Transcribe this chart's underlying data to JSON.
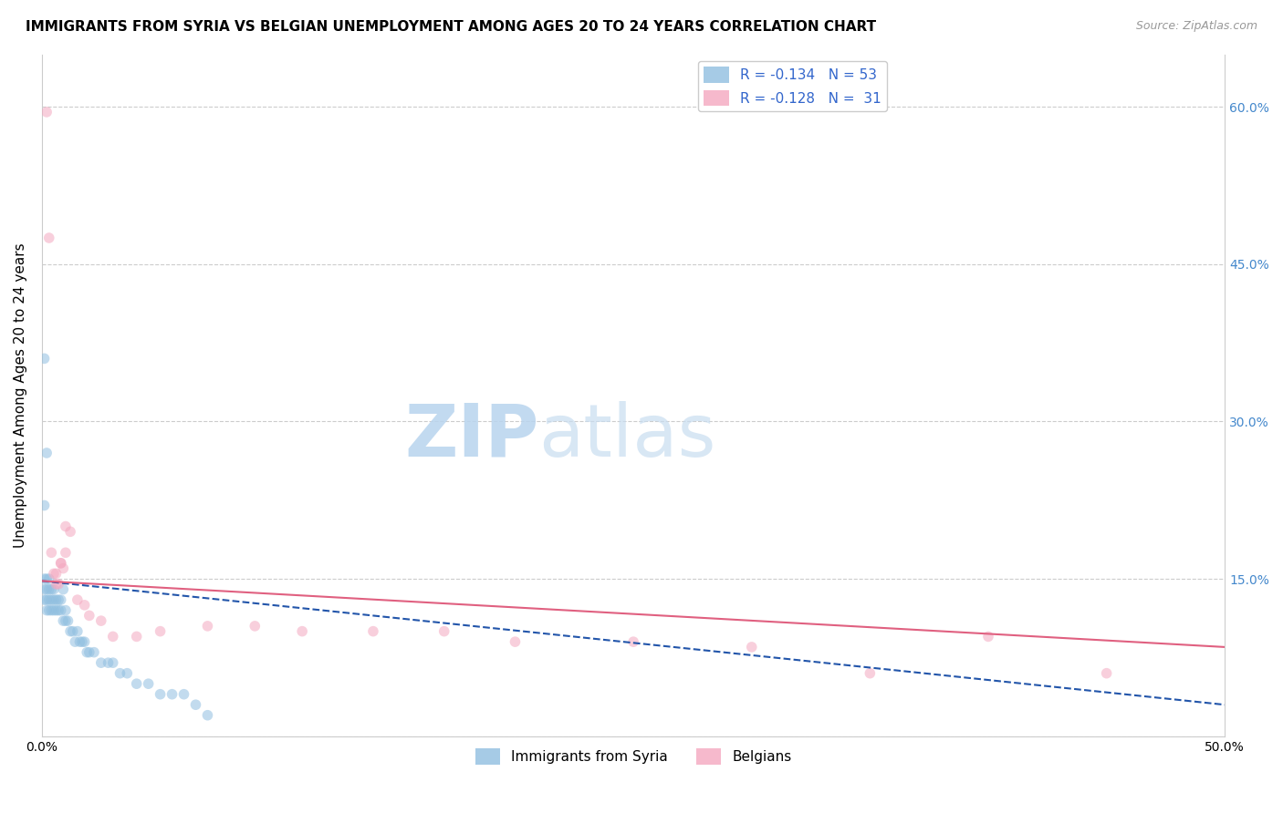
{
  "title": "IMMIGRANTS FROM SYRIA VS BELGIAN UNEMPLOYMENT AMONG AGES 20 TO 24 YEARS CORRELATION CHART",
  "source": "Source: ZipAtlas.com",
  "ylabel": "Unemployment Among Ages 20 to 24 years",
  "x_min": 0.0,
  "x_max": 0.5,
  "y_min": 0.0,
  "y_max": 0.65,
  "x_ticks": [
    0.0,
    0.1,
    0.2,
    0.3,
    0.4,
    0.5
  ],
  "x_tick_labels": [
    "0.0%",
    "",
    "",
    "",
    "",
    "50.0%"
  ],
  "y_ticks": [
    0.0,
    0.15,
    0.3,
    0.45,
    0.6
  ],
  "right_y_tick_labels": [
    "",
    "15.0%",
    "30.0%",
    "45.0%",
    "60.0%"
  ],
  "blue_color": "#90bfe0",
  "pink_color": "#f4a8c0",
  "blue_line_color": "#2255aa",
  "pink_line_color": "#e06080",
  "grid_color": "#cccccc",
  "bg_color": "#ffffff",
  "title_fontsize": 11,
  "axis_label_fontsize": 11,
  "tick_fontsize": 10,
  "right_tick_color": "#4488cc",
  "scatter_size": 70,
  "scatter_alpha": 0.55,
  "blue_scatter_x": [
    0.001,
    0.001,
    0.001,
    0.001,
    0.002,
    0.002,
    0.002,
    0.002,
    0.002,
    0.003,
    0.003,
    0.003,
    0.003,
    0.004,
    0.004,
    0.004,
    0.005,
    0.005,
    0.005,
    0.006,
    0.006,
    0.007,
    0.007,
    0.008,
    0.008,
    0.009,
    0.009,
    0.01,
    0.01,
    0.011,
    0.012,
    0.013,
    0.014,
    0.015,
    0.016,
    0.017,
    0.018,
    0.019,
    0.02,
    0.022,
    0.025,
    0.028,
    0.03,
    0.033,
    0.036,
    0.04,
    0.045,
    0.05,
    0.055,
    0.06,
    0.065,
    0.07,
    0.001
  ],
  "blue_scatter_y": [
    0.36,
    0.15,
    0.14,
    0.13,
    0.27,
    0.15,
    0.14,
    0.13,
    0.12,
    0.15,
    0.14,
    0.13,
    0.12,
    0.14,
    0.13,
    0.12,
    0.14,
    0.13,
    0.12,
    0.13,
    0.12,
    0.13,
    0.12,
    0.13,
    0.12,
    0.14,
    0.11,
    0.12,
    0.11,
    0.11,
    0.1,
    0.1,
    0.09,
    0.1,
    0.09,
    0.09,
    0.09,
    0.08,
    0.08,
    0.08,
    0.07,
    0.07,
    0.07,
    0.06,
    0.06,
    0.05,
    0.05,
    0.04,
    0.04,
    0.04,
    0.03,
    0.02,
    0.22
  ],
  "pink_scatter_x": [
    0.002,
    0.003,
    0.004,
    0.005,
    0.006,
    0.007,
    0.008,
    0.009,
    0.01,
    0.012,
    0.015,
    0.018,
    0.02,
    0.025,
    0.03,
    0.04,
    0.05,
    0.07,
    0.09,
    0.11,
    0.14,
    0.17,
    0.2,
    0.25,
    0.3,
    0.35,
    0.4,
    0.45,
    0.006,
    0.008,
    0.01
  ],
  "pink_scatter_y": [
    0.595,
    0.475,
    0.175,
    0.155,
    0.145,
    0.145,
    0.165,
    0.16,
    0.175,
    0.195,
    0.13,
    0.125,
    0.115,
    0.11,
    0.095,
    0.095,
    0.1,
    0.105,
    0.105,
    0.1,
    0.1,
    0.1,
    0.09,
    0.09,
    0.085,
    0.06,
    0.095,
    0.06,
    0.155,
    0.165,
    0.2
  ],
  "blue_line_x0": 0.0,
  "blue_line_x1": 0.5,
  "blue_line_y0": 0.148,
  "blue_line_y1": 0.03,
  "pink_line_x0": 0.0,
  "pink_line_x1": 0.5,
  "pink_line_y0": 0.148,
  "pink_line_y1": 0.085
}
